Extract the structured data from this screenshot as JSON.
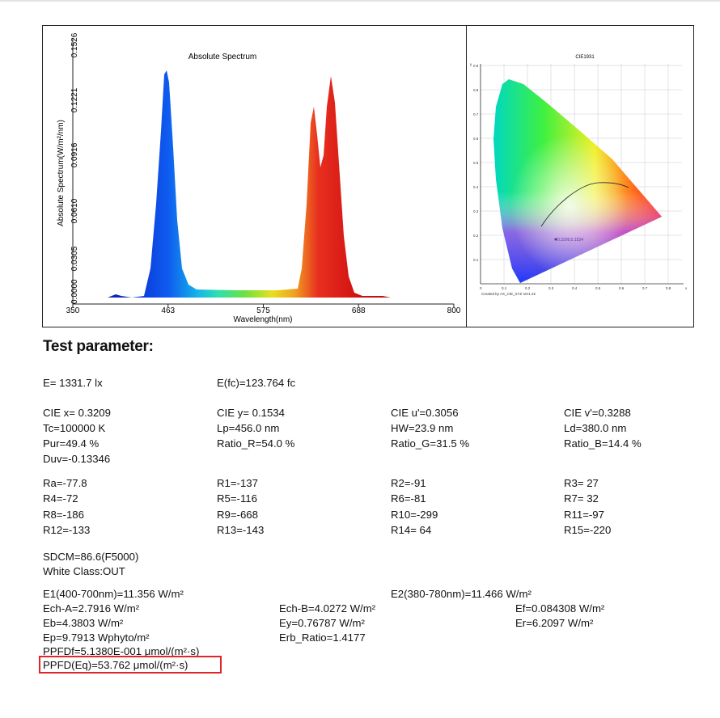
{
  "spectrum": {
    "title": "Absolute Spectrum",
    "xlabel": "Wavelength(nm)",
    "ylabel": "Absolute Spectrum(W/m²/nm)",
    "x_ticks": [
      "350",
      "463",
      "575",
      "688",
      "800"
    ],
    "y_ticks": [
      "0.0000",
      "0.0305",
      "0.0610",
      "0.0916",
      "0.1221",
      "0.1526"
    ]
  },
  "cie": {
    "title": "CIE1931",
    "x_ticks": [
      "0",
      "0.1",
      "0.2",
      "0.3",
      "0.4",
      "0.5",
      "0.6",
      "0.7",
      "0.8"
    ],
    "y_ticks": [
      "0.1",
      "0.2",
      "0.3",
      "0.4",
      "0.5",
      "0.6",
      "0.7",
      "0.8",
      "0.9"
    ],
    "y_axis_label": "y",
    "x_axis_label": "x",
    "point_label": "0.3209,0.1534",
    "credit": "Created by AX_CIE_XYZ Ver1.22"
  },
  "section_title": "Test parameter:",
  "rows": {
    "r1": [
      "E=  1331.7 lx",
      "E(fc)=123.764 fc"
    ],
    "r2": [
      "CIE x= 0.3209",
      "CIE y= 0.1534",
      "CIE u'=0.3056",
      "CIE v'=0.3288"
    ],
    "r3": [
      "Tc=100000 K",
      "Lp=456.0 nm",
      "HW=23.9 nm",
      "Ld=380.0 nm"
    ],
    "r4": [
      "Pur=49.4 %",
      "Ratio_R=54.0 %",
      "Ratio_G=31.5 %",
      "Ratio_B=14.4 %"
    ],
    "r5": [
      "Duv=-0.13346"
    ],
    "r6": [
      "Ra=-77.8",
      "R1=-137",
      "R2=-91",
      "R3= 27"
    ],
    "r7": [
      "R4=-72",
      "R5=-116",
      "R6=-81",
      "R7= 32"
    ],
    "r8": [
      "R8=-186",
      "R9=-668",
      "R10=-299",
      "R11=-97"
    ],
    "r9": [
      "R12=-133",
      "R13=-143",
      "R14= 64",
      "R15=-220"
    ],
    "r10": [
      "SDCM=86.6(F5000)"
    ],
    "r11": [
      "White Class:OUT"
    ],
    "r12": [
      "E1(400-700nm)=11.356 W/m²",
      "E2(380-780nm)=11.466 W/m²"
    ],
    "r13": [
      "Ech-A=2.7916 W/m²",
      "Ech-B=4.0272 W/m²",
      "Ef=0.084308 W/m²"
    ],
    "r14": [
      "Eb=4.3803 W/m²",
      "Ey=0.76787 W/m²",
      "Er=6.2097 W/m²"
    ],
    "r15": [
      "Ep=9.7913 Wphyto/m²",
      "Erb_Ratio=1.4177"
    ],
    "r16": [
      "PPFDf=5.1380E-001 μmol/(m²·s)"
    ],
    "r17": [
      "PPFD(Eq)=53.762 μmol/(m²·s)"
    ]
  },
  "colors": {
    "highlight_box": "#e0262b"
  }
}
